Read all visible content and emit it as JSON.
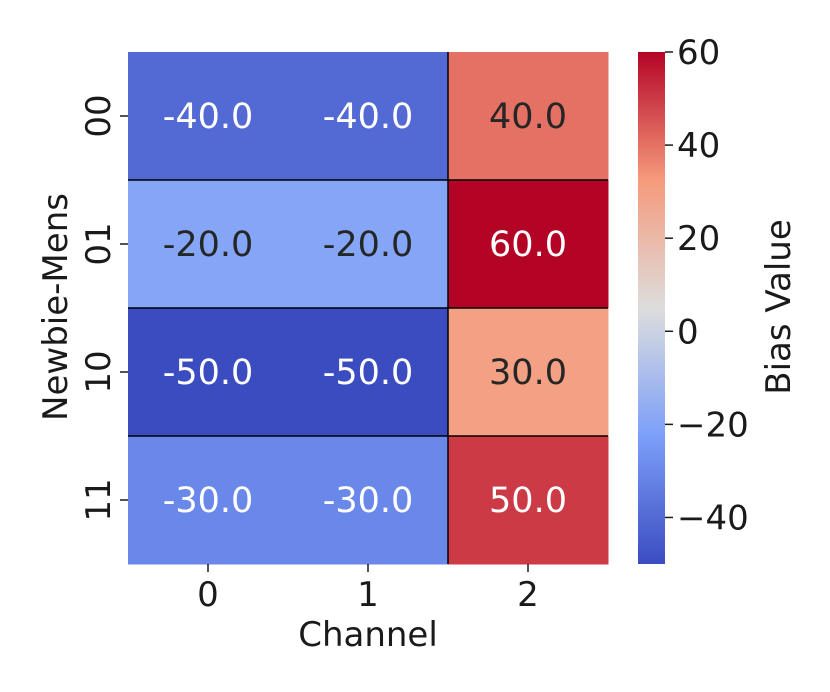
{
  "chart_data": {
    "type": "heatmap",
    "title": "",
    "xlabel": "Channel",
    "ylabel": "Newbie-Mens",
    "x_categories": [
      "0",
      "1",
      "2"
    ],
    "y_categories": [
      "00",
      "01",
      "10",
      "11"
    ],
    "values": [
      [
        -40.0,
        -40.0,
        40.0
      ],
      [
        -20.0,
        -20.0,
        60.0
      ],
      [
        -50.0,
        -50.0,
        30.0
      ],
      [
        -30.0,
        -30.0,
        50.0
      ]
    ],
    "cell_labels": [
      [
        "-40.0",
        "-40.0",
        "40.0"
      ],
      [
        "-20.0",
        "-20.0",
        "60.0"
      ],
      [
        "-50.0",
        "-50.0",
        "30.0"
      ],
      [
        "-30.0",
        "-30.0",
        "50.0"
      ]
    ],
    "colormap": "coolwarm",
    "color_range": [
      -50,
      60
    ],
    "colorbar": {
      "label": "Bias Value",
      "ticks": [
        60,
        40,
        20,
        0,
        -20,
        -40
      ],
      "tick_labels": [
        "60",
        "40",
        "20",
        "0",
        "−20",
        "−40"
      ]
    },
    "separator_color": "#000000"
  }
}
